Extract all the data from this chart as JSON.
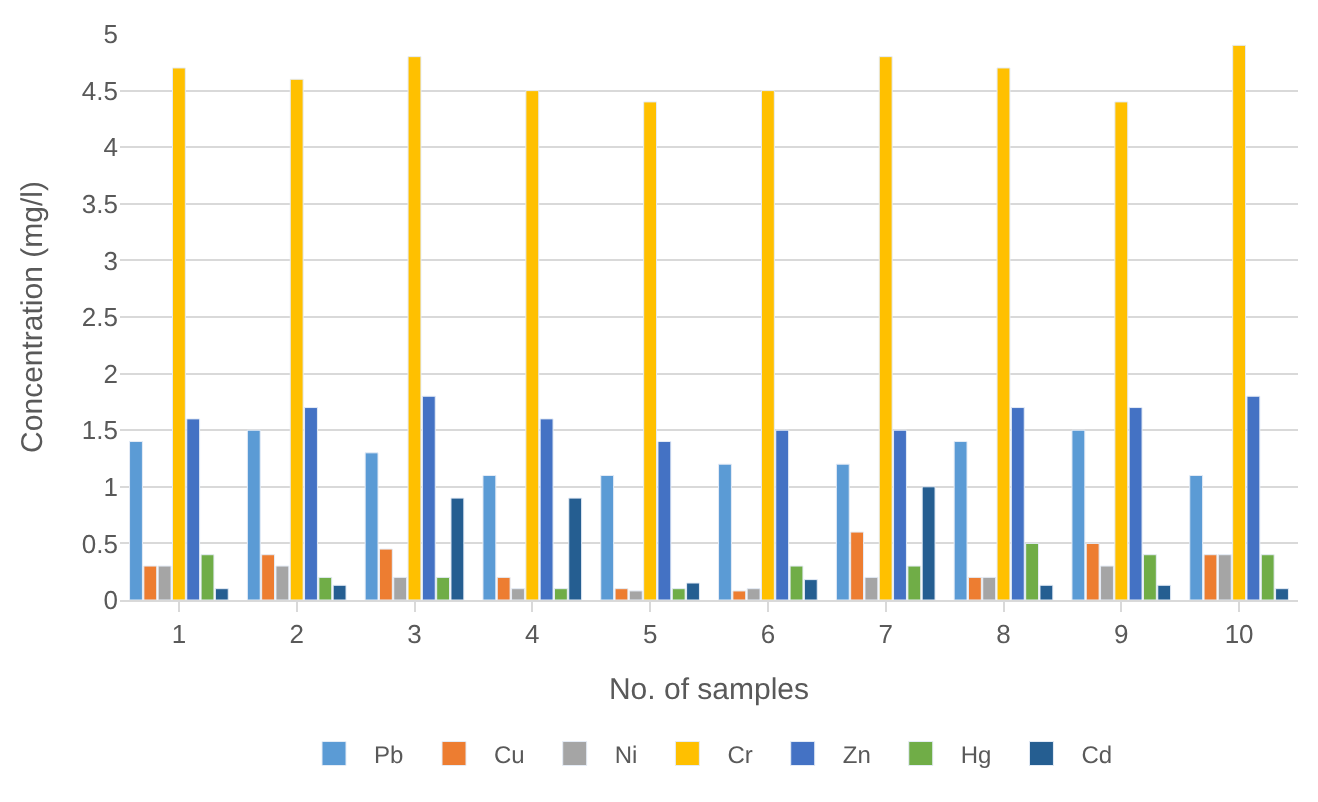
{
  "chart_data": {
    "type": "bar",
    "xlabel": "No. of samples",
    "ylabel": "Concentration (mg/l)",
    "categories": [
      "1",
      "2",
      "3",
      "4",
      "5",
      "6",
      "7",
      "8",
      "9",
      "10"
    ],
    "series": [
      {
        "name": "Pb",
        "color": "#5b9bd5",
        "values": [
          1.4,
          1.5,
          1.3,
          1.1,
          1.1,
          1.2,
          1.2,
          1.4,
          1.5,
          1.1
        ]
      },
      {
        "name": "Cu",
        "color": "#ed7d31",
        "values": [
          0.3,
          0.4,
          0.45,
          0.2,
          0.1,
          0.08,
          0.6,
          0.2,
          0.5,
          0.4
        ]
      },
      {
        "name": "Ni",
        "color": "#a5a5a5",
        "values": [
          0.3,
          0.3,
          0.2,
          0.1,
          0.08,
          0.1,
          0.2,
          0.2,
          0.3,
          0.4
        ]
      },
      {
        "name": "Cr",
        "color": "#ffc000",
        "values": [
          4.7,
          4.6,
          4.8,
          4.5,
          4.4,
          4.5,
          4.8,
          4.7,
          4.4,
          4.9
        ]
      },
      {
        "name": "Zn",
        "color": "#4472c4",
        "values": [
          1.6,
          1.7,
          1.8,
          1.6,
          1.4,
          1.5,
          1.5,
          1.7,
          1.7,
          1.8
        ]
      },
      {
        "name": "Hg",
        "color": "#70ad47",
        "values": [
          0.4,
          0.2,
          0.2,
          0.1,
          0.1,
          0.3,
          0.3,
          0.5,
          0.4,
          0.4
        ]
      },
      {
        "name": "Cd",
        "color": "#255e91",
        "values": [
          0.1,
          0.13,
          0.9,
          0.9,
          0.15,
          0.18,
          1.0,
          0.13,
          0.13,
          0.1
        ]
      }
    ],
    "ylim": [
      0,
      5
    ],
    "yticks": [
      0,
      {
        "value": 0.5,
        "label": "0.5"
      },
      1,
      {
        "value": 1.5,
        "label": "1.5"
      },
      2,
      {
        "value": 2.5,
        "label": "2.5"
      },
      3,
      {
        "value": 3.5,
        "label": "3.5"
      },
      4,
      {
        "value": 4.5,
        "label": "4.5"
      },
      5
    ],
    "grid": "y",
    "legend": "bottom"
  }
}
